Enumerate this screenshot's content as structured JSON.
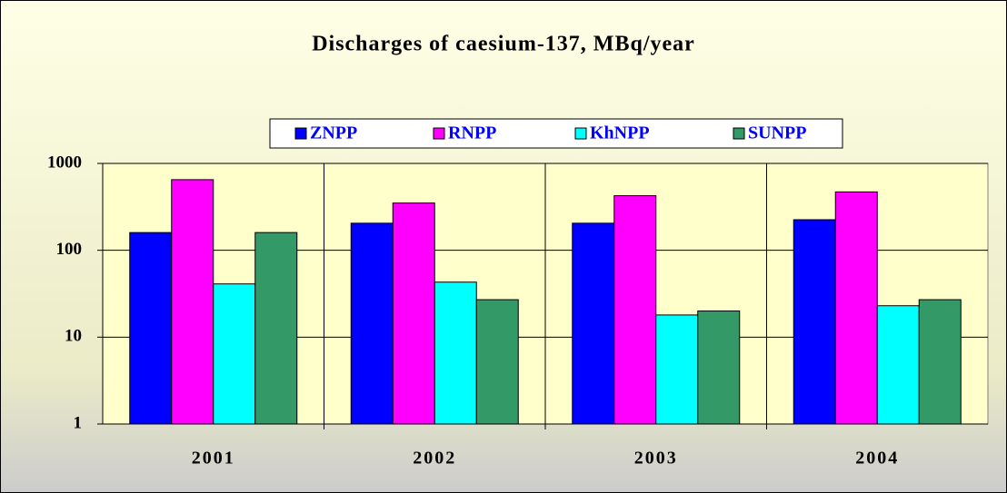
{
  "chart_data": {
    "type": "bar",
    "title": "Discharges of caesium-137, MBq/year",
    "categories": [
      "2001",
      "2002",
      "2003",
      "2004"
    ],
    "series": [
      {
        "name": "ZNPP",
        "color": "#0000ff",
        "values": [
          160,
          205,
          205,
          225
        ]
      },
      {
        "name": "RNPP",
        "color": "#ff00ff",
        "values": [
          650,
          350,
          425,
          470
        ]
      },
      {
        "name": "KhNPP",
        "color": "#00ffff",
        "values": [
          41,
          43,
          18,
          23
        ]
      },
      {
        "name": "SUNPP",
        "color": "#339966",
        "values": [
          160,
          27,
          20,
          27
        ]
      }
    ],
    "ylim": [
      1,
      1000
    ],
    "yticks": [
      1,
      10,
      100,
      1000
    ],
    "log_scale": true,
    "grid": true,
    "legend": "top"
  }
}
